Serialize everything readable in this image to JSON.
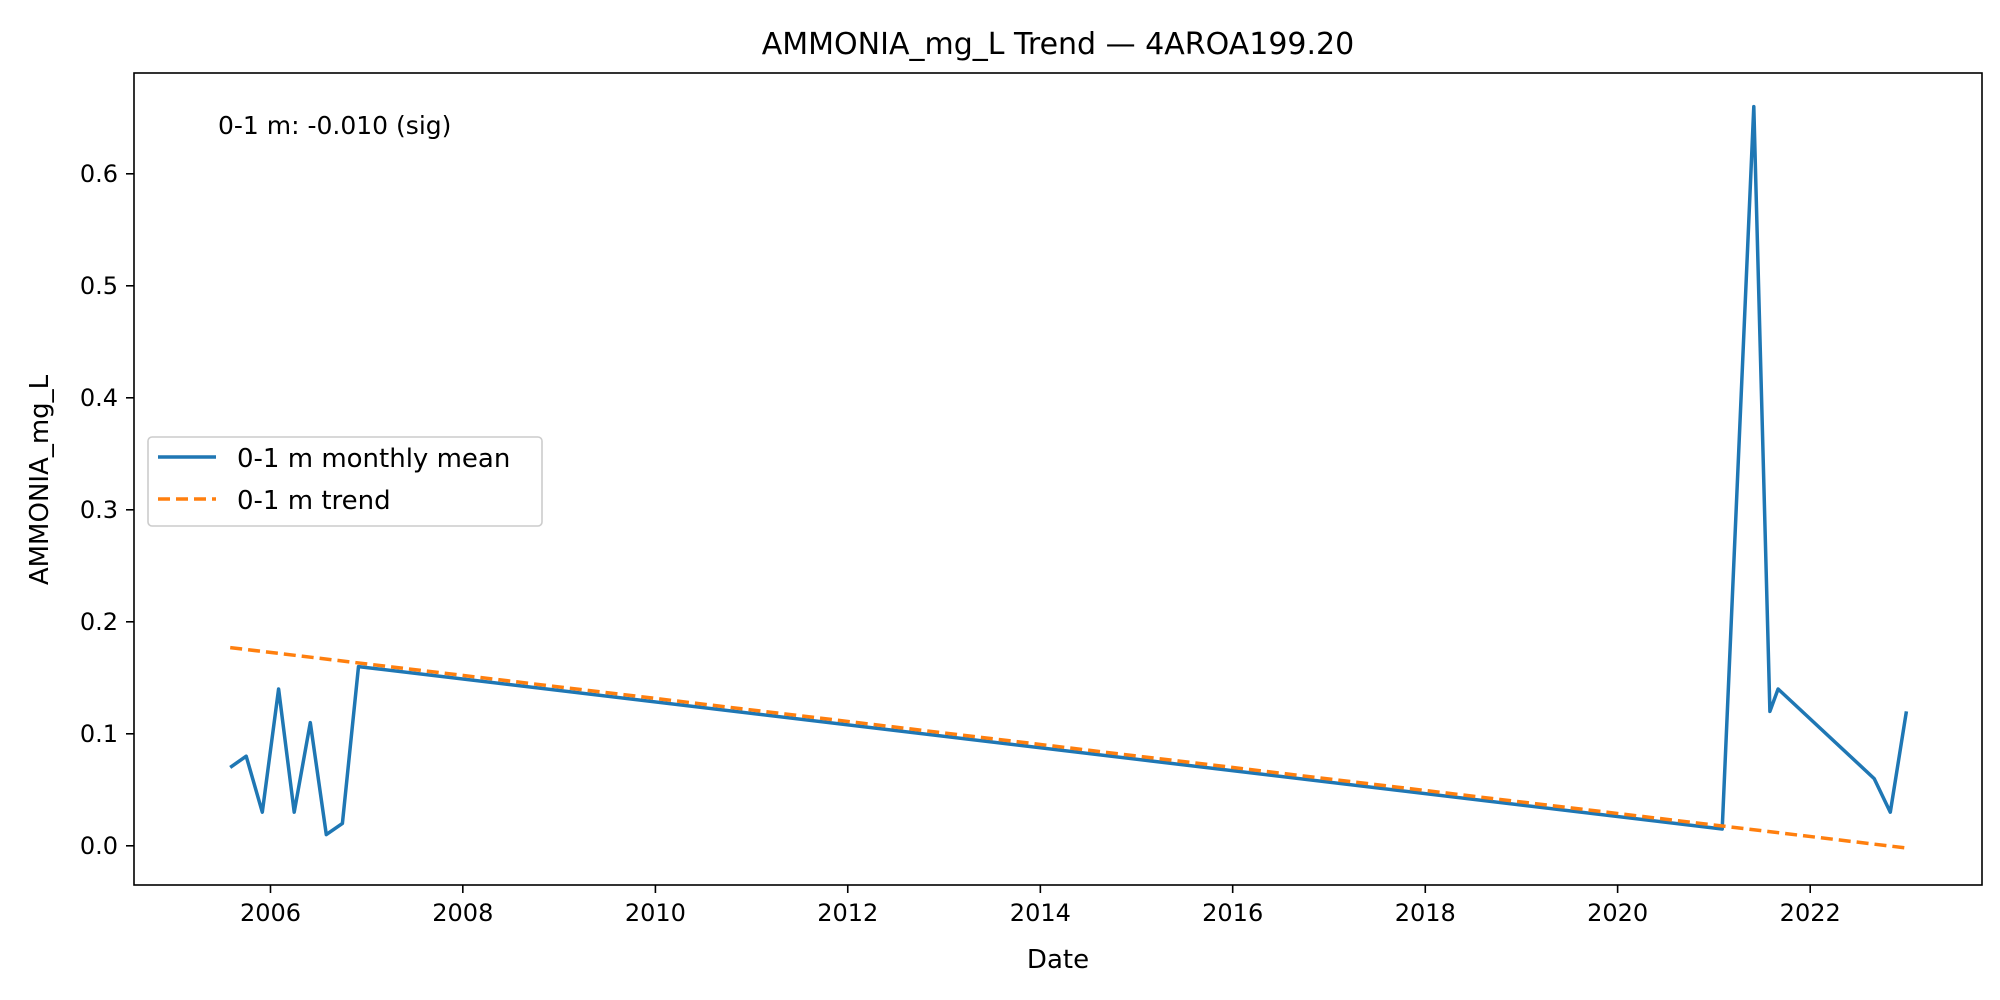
{
  "chart_data": {
    "type": "line",
    "title": "AMMONIA_mg_L Trend — 4AROA199.20",
    "xlabel": "Date",
    "ylabel": "AMMONIA_mg_L",
    "annotation": "0-1 m: -0.010 (sig)",
    "xlim": [
      "2004-08-01",
      "2023-10-15"
    ],
    "ylim": [
      -0.035,
      0.69
    ],
    "x_ticks": [
      "2006",
      "2008",
      "2010",
      "2012",
      "2014",
      "2016",
      "2018",
      "2020",
      "2022"
    ],
    "y_ticks": [
      "0.0",
      "0.1",
      "0.2",
      "0.3",
      "0.4",
      "0.5",
      "0.6"
    ],
    "grid": false,
    "legend_position": "center-left",
    "series": [
      {
        "name": "0-1 m monthly mean",
        "color": "#1f77b4",
        "style": "solid",
        "x": [
          "2005-08-01",
          "2005-10-01",
          "2005-12-01",
          "2006-02-01",
          "2006-04-01",
          "2006-06-01",
          "2006-08-01",
          "2006-10-01",
          "2006-12-01",
          "2021-02-01",
          "2021-06-01",
          "2021-08-01",
          "2021-09-01",
          "2022-09-01",
          "2022-11-01",
          "2023-01-01"
        ],
        "y": [
          0.07,
          0.08,
          0.03,
          0.14,
          0.03,
          0.11,
          0.01,
          0.02,
          0.16,
          0.015,
          0.66,
          0.12,
          0.14,
          0.06,
          0.03,
          0.12
        ]
      },
      {
        "name": "0-1 m trend",
        "color": "#ff7f0e",
        "style": "dashed",
        "x": [
          "2005-08-01",
          "2023-01-01"
        ],
        "y": [
          0.177,
          -0.002
        ]
      }
    ]
  }
}
